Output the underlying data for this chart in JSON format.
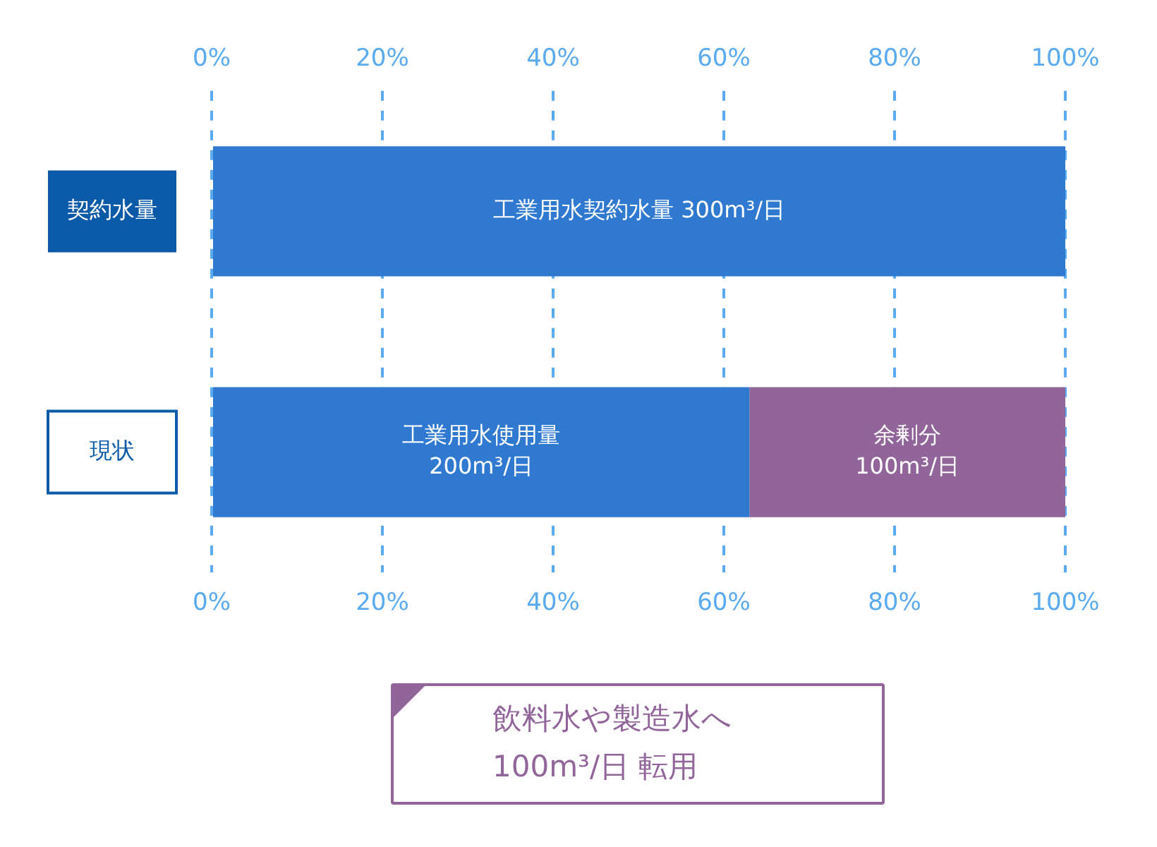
{
  "chart_data": {
    "type": "bar",
    "orientation": "horizontal",
    "stacked": true,
    "categories": [
      "契約水量",
      "現状"
    ],
    "series": [
      {
        "color": "#2f7ad0",
        "values": [
          100,
          63
        ],
        "value_labels": [
          "工業用水契約水量 300m³/日",
          "工業用水使用量\n200m³/日"
        ]
      },
      {
        "color": "#916599",
        "values": [
          null,
          37
        ],
        "value_labels": [
          null,
          "余剰分\n100m³/日"
        ]
      }
    ],
    "xlim": [
      0,
      100
    ],
    "xticks": [
      {
        "value": 0,
        "label": "0%"
      },
      {
        "value": 20,
        "label": "20%"
      },
      {
        "value": 40,
        "label": "40%"
      },
      {
        "value": 60,
        "label": "60%"
      },
      {
        "value": 80,
        "label": "80%"
      },
      {
        "value": 100,
        "label": "100%"
      }
    ],
    "x2lim": [
      0,
      100
    ],
    "x2ticks": [
      {
        "value": 0,
        "label": "0%"
      },
      {
        "value": 20,
        "label": "20%"
      },
      {
        "value": 40,
        "label": "40%"
      },
      {
        "value": 60,
        "label": "60%"
      },
      {
        "value": 80,
        "label": "80%"
      },
      {
        "value": 100,
        "label": "100%"
      }
    ],
    "grid": "x",
    "legend": false,
    "annotations": [
      "飲料水や製造水へ\n100m³/日 転用"
    ]
  }
}
